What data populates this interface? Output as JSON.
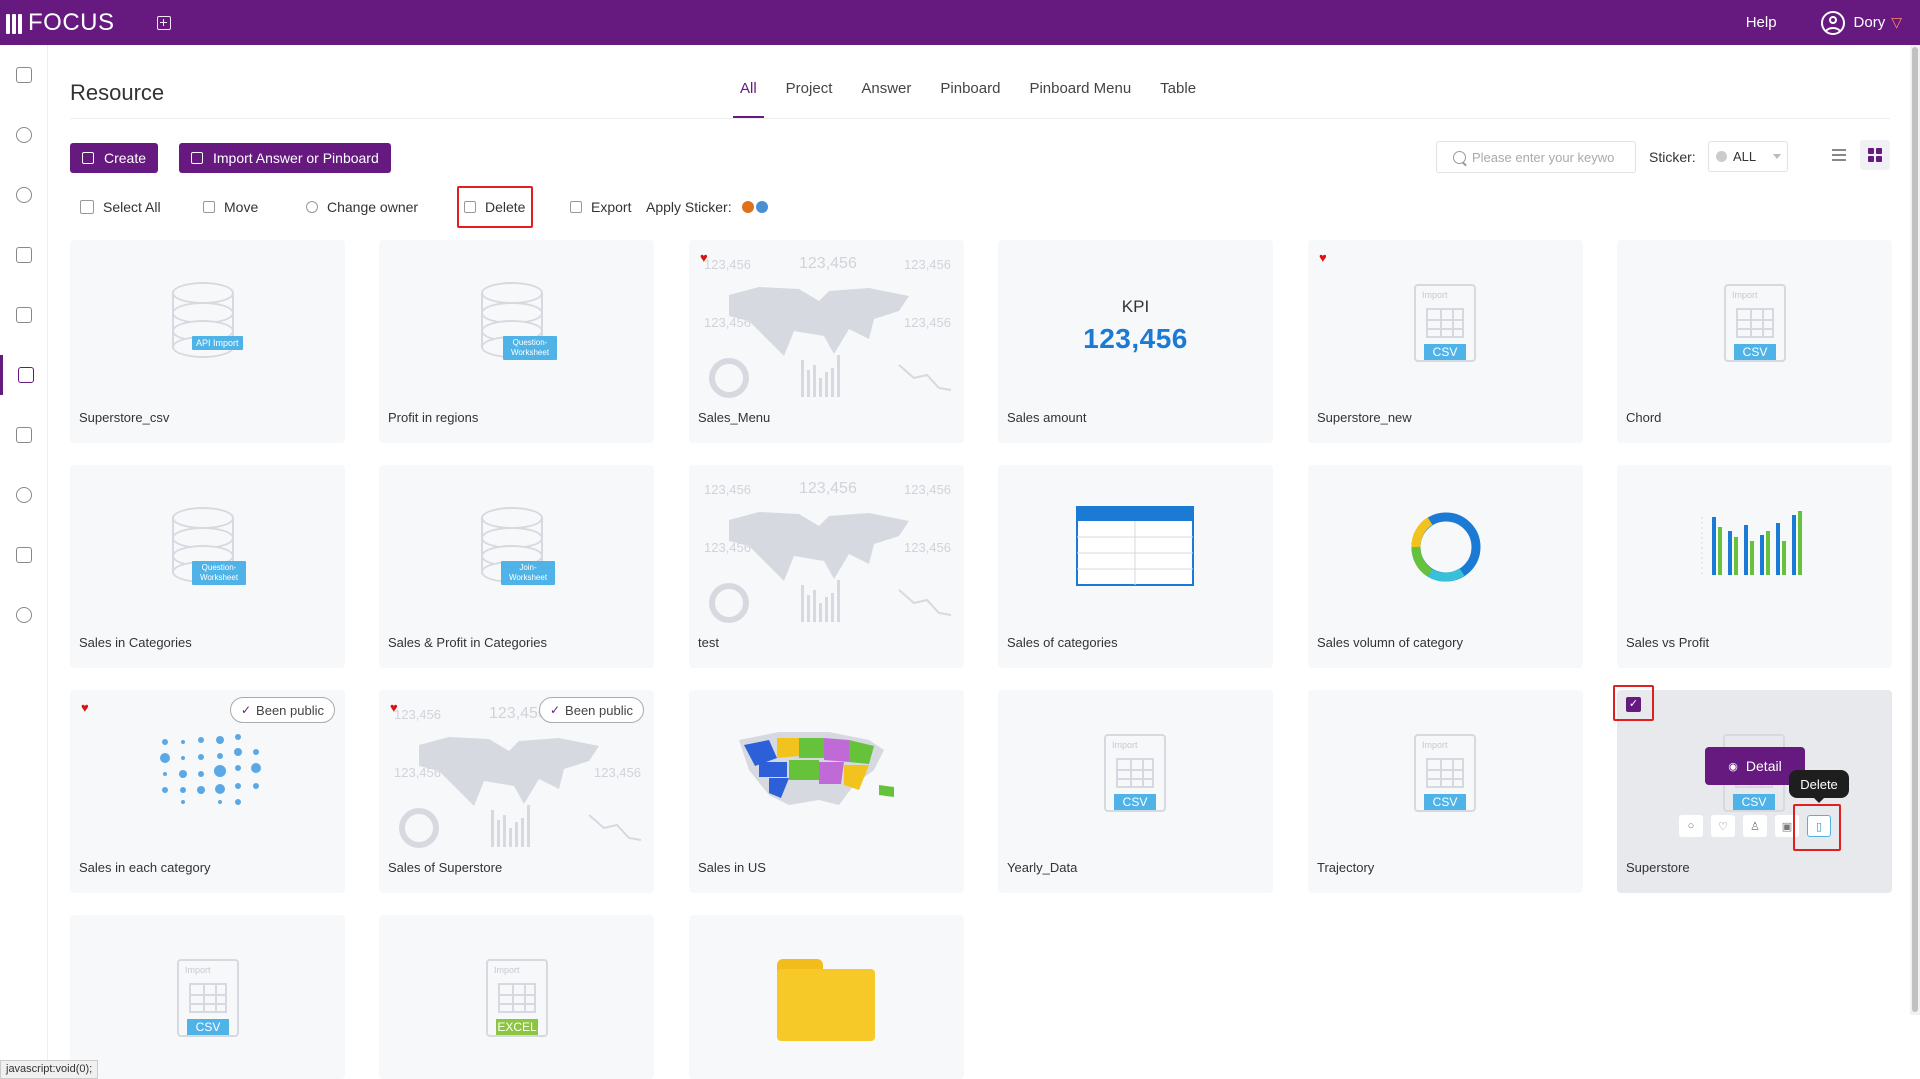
{
  "app": {
    "name": "FOCUS",
    "help": "Help",
    "user": "Dory"
  },
  "page": {
    "title": "Resource"
  },
  "tabs": [
    "All",
    "Project",
    "Answer",
    "Pinboard",
    "Pinboard Menu",
    "Table"
  ],
  "toolbar": {
    "create": "Create",
    "import": "Import Answer or Pinboard",
    "search_placeholder": "Please enter your keywo",
    "sticker_label": "Sticker:",
    "sticker_value": "ALL"
  },
  "actions": {
    "select_all": "Select All",
    "move": "Move",
    "change_owner": "Change owner",
    "delete": "Delete",
    "export": "Export",
    "apply_sticker": "Apply Sticker:",
    "sticker_colors": [
      "#e0711c",
      "#4a8fd4"
    ]
  },
  "cards": [
    {
      "name": "Superstore_csv",
      "thumb_tag": "API Import"
    },
    {
      "name": "Profit in regions",
      "thumb_tag": "Question-Worksheet"
    },
    {
      "name": "Sales_Menu",
      "kpi_sample": "123,456"
    },
    {
      "name": "Sales amount",
      "kpi_title": "KPI",
      "kpi_value": "123,456"
    },
    {
      "name": "Superstore_new",
      "thumb_tag": "CSV",
      "thumb_import": "Import"
    },
    {
      "name": "Chord",
      "thumb_tag": "CSV",
      "thumb_import": "Import"
    },
    {
      "name": "Sales in Categories",
      "thumb_tag": "Question-Worksheet"
    },
    {
      "name": "Sales & Profit in Categories",
      "thumb_tag": "Join-Worksheet"
    },
    {
      "name": "test",
      "kpi_sample": "123,456"
    },
    {
      "name": "Sales of categories"
    },
    {
      "name": "Sales volumn of category"
    },
    {
      "name": "Sales vs Profit"
    },
    {
      "name": "Sales in each category",
      "badge": "Been public"
    },
    {
      "name": "Sales of Superstore",
      "badge": "Been public",
      "kpi_sample": "123,456"
    },
    {
      "name": "Sales in US"
    },
    {
      "name": "Yearly_Data",
      "thumb_tag": "CSV",
      "thumb_import": "Import"
    },
    {
      "name": "Trajectory",
      "thumb_tag": "CSV",
      "thumb_import": "Import"
    },
    {
      "name": "Superstore",
      "thumb_tag": "CSV",
      "detail": "Detail",
      "tooltip": "Delete"
    },
    {
      "name": "",
      "thumb_tag": "CSV",
      "thumb_import": "Import"
    },
    {
      "name": "",
      "thumb_tag": "EXCEL",
      "thumb_import": "Import"
    },
    {
      "name": ""
    }
  ],
  "status_text": "javascript:void(0);"
}
